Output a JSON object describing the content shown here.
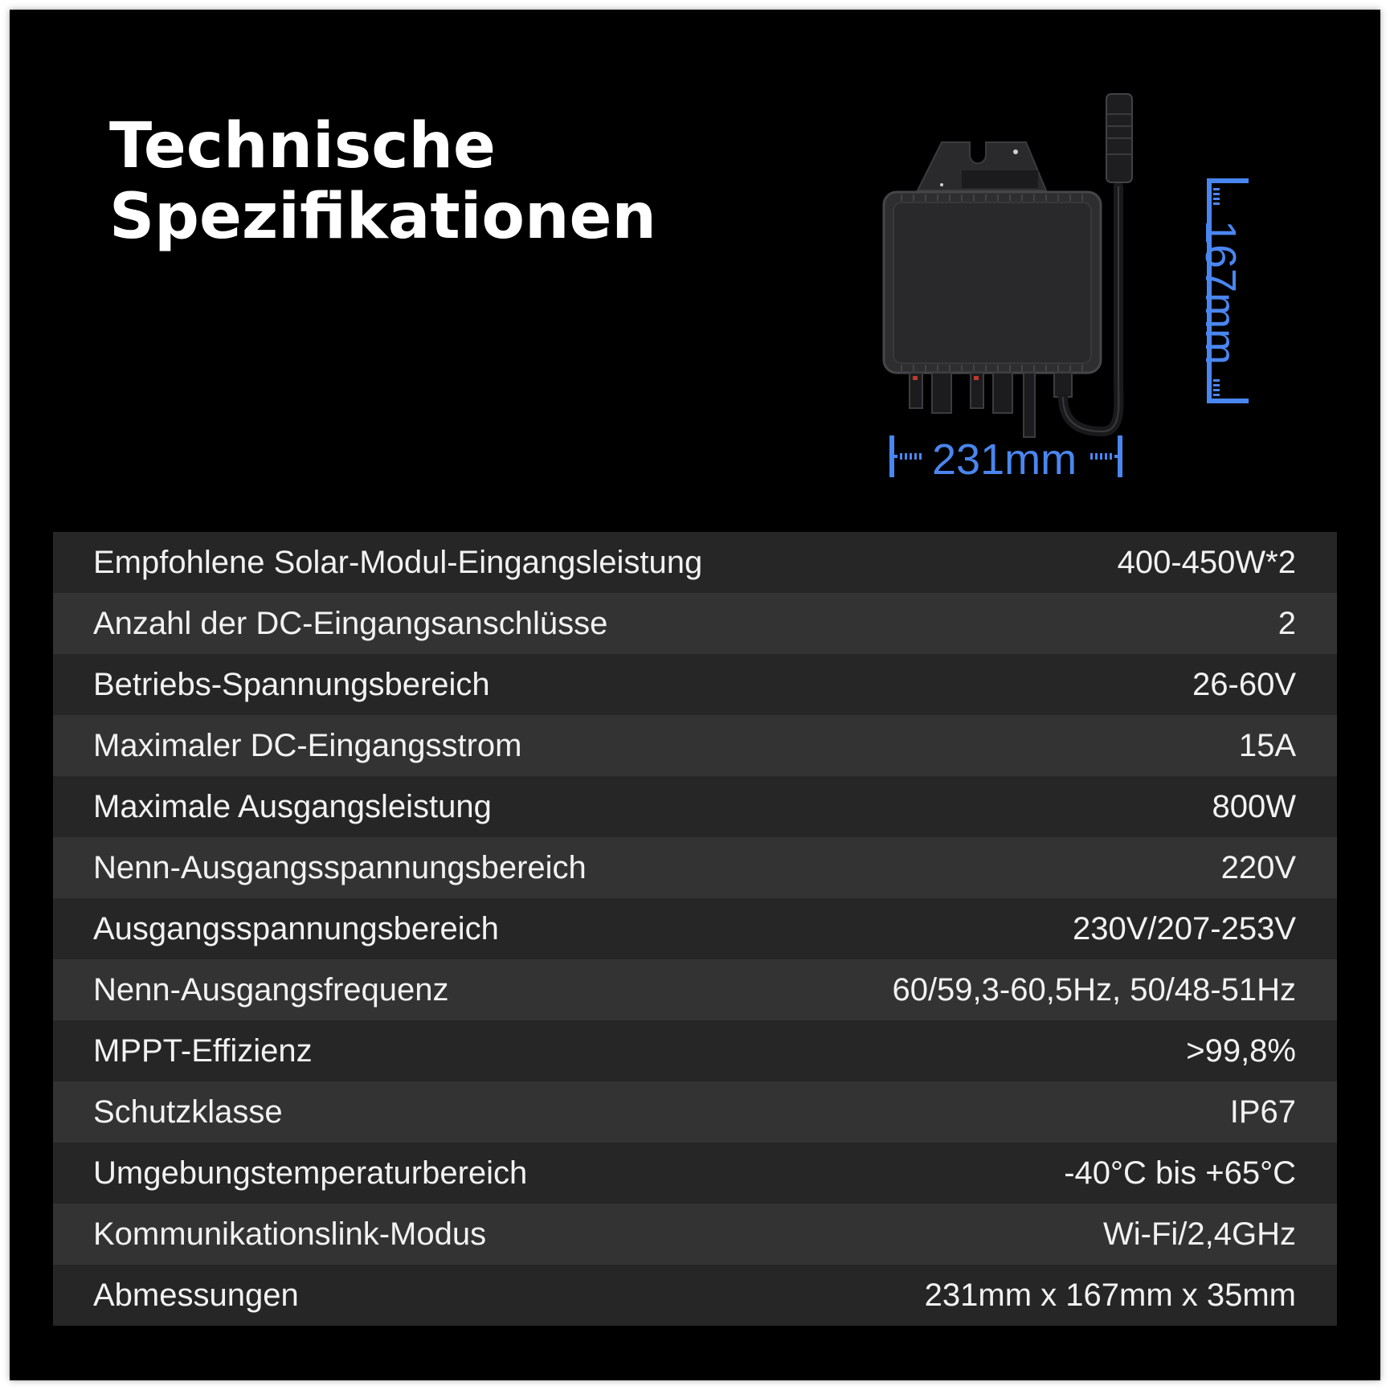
{
  "title": {
    "line1": "Technische",
    "line2": "Spezifikationen"
  },
  "dimensions": {
    "width_label": "231mm",
    "height_label": "167mm"
  },
  "accent_color": "#4a86f0",
  "specs": [
    {
      "label": "Empfohlene Solar-Modul-Eingangsleistung",
      "value": "400-450W*2"
    },
    {
      "label": "Anzahl der DC-Eingangsanschlüsse",
      "value": "2"
    },
    {
      "label": "Betriebs-Spannungsbereich",
      "value": "26-60V"
    },
    {
      "label": "Maximaler DC-Eingangsstrom",
      "value": "15A"
    },
    {
      "label": "Maximale Ausgangsleistung",
      "value": "800W"
    },
    {
      "label": "Nenn-Ausgangsspannungsbereich",
      "value": "220V"
    },
    {
      "label": "Ausgangsspannungsbereich",
      "value": "230V/207-253V"
    },
    {
      "label": "Nenn-Ausgangsfrequenz",
      "value": "60/59,3-60,5Hz, 50/48-51Hz"
    },
    {
      "label": "MPPT-Effizienz",
      "value": ">99,8%"
    },
    {
      "label": "Schutzklasse",
      "value": "IP67"
    },
    {
      "label": "Umgebungstemperaturbereich",
      "value": "-40°C bis +65°C"
    },
    {
      "label": "Kommunikationslink-Modus",
      "value": "Wi-Fi/2,4GHz"
    },
    {
      "label": "Abmessungen",
      "value": "231mm x 167mm x 35mm"
    }
  ]
}
